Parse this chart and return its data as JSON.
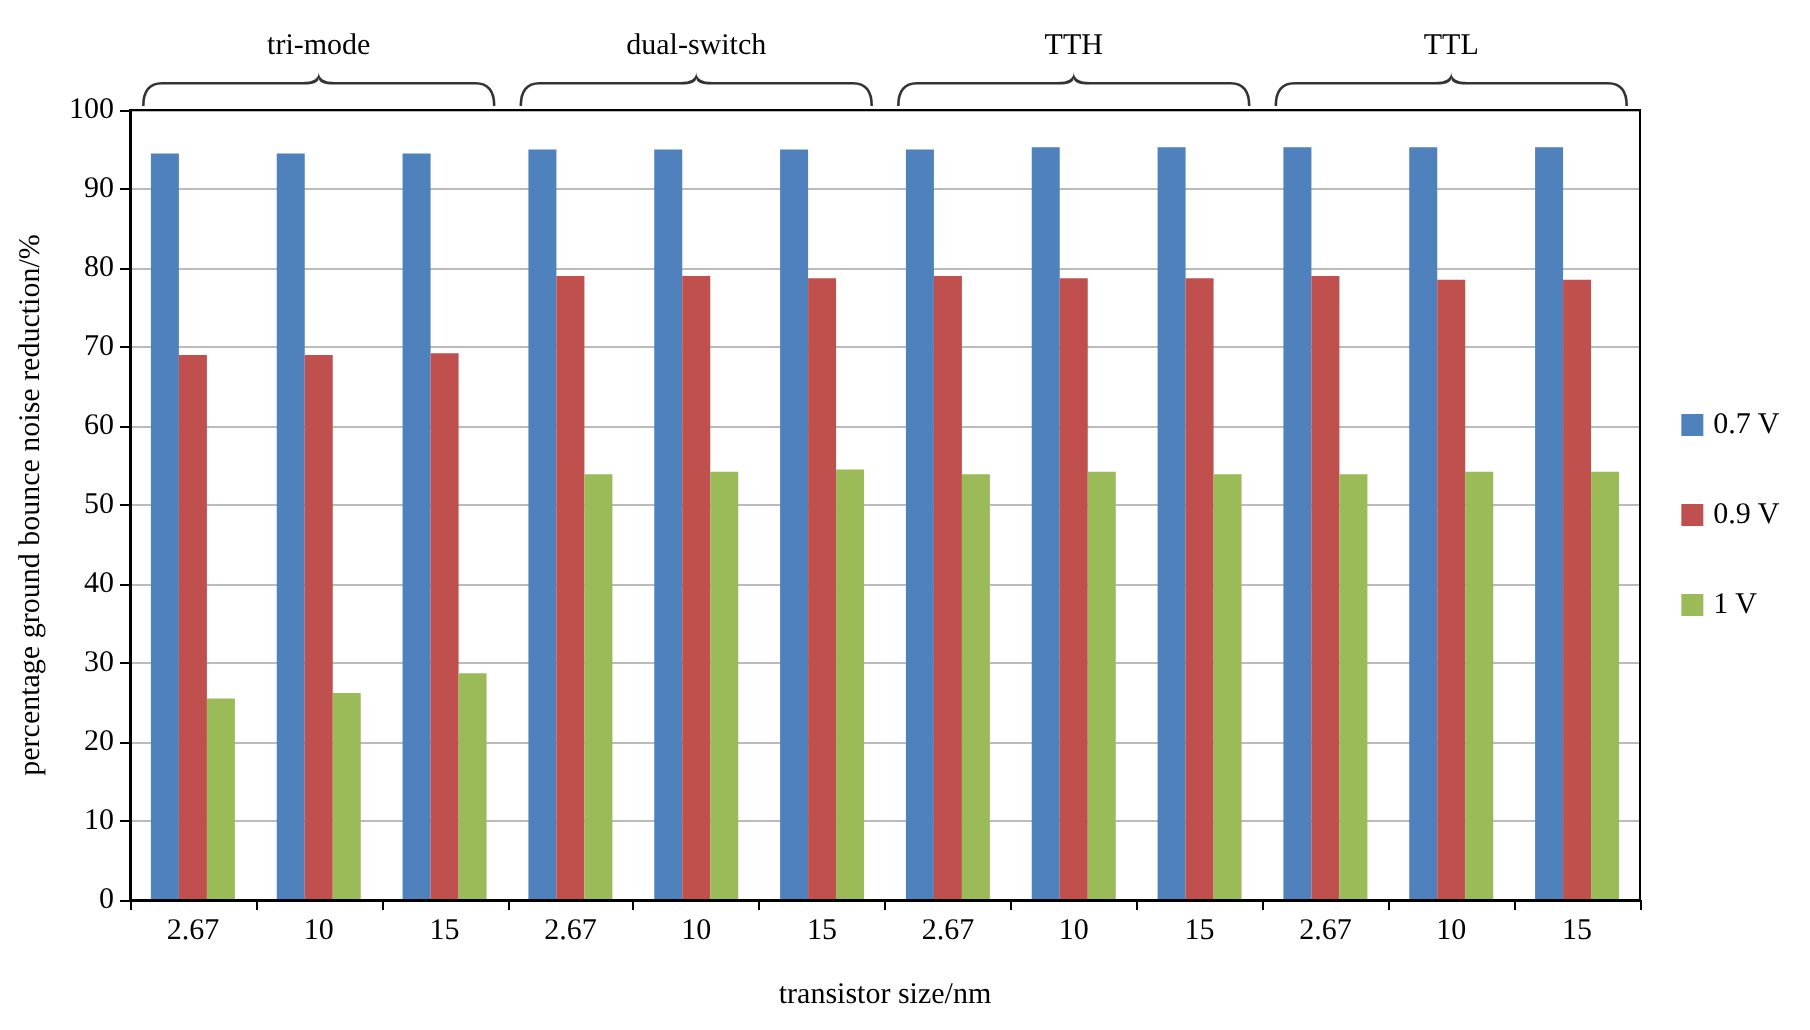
{
  "chart_data": {
    "type": "bar",
    "xlabel": "transistor size/nm",
    "ylabel": "percentage ground bounce noise reduction/%",
    "categories": [
      "2.67",
      "10",
      "15",
      "2.67",
      "10",
      "15",
      "2.67",
      "10",
      "15",
      "2.67",
      "10",
      "15"
    ],
    "series": [
      {
        "name": "0.7 V",
        "color": "#4f81bd",
        "values": [
          94.5,
          94.5,
          94.5,
          95,
          95,
          95,
          95,
          95.3,
          95.3,
          95.3,
          95.3,
          95.3
        ]
      },
      {
        "name": "0.9 V",
        "color": "#c0504d",
        "values": [
          69,
          69,
          69.2,
          79,
          79,
          78.7,
          79,
          78.7,
          78.7,
          79,
          78.5,
          78.5
        ]
      },
      {
        "name": "1 V",
        "color": "#9bbb59",
        "values": [
          25.5,
          26.2,
          28.7,
          53.9,
          54.2,
          54.5,
          53.9,
          54.2,
          53.9,
          53.9,
          54.2,
          54.2
        ]
      }
    ],
    "annotations": [
      "tri-mode",
      "dual-switch",
      "TTH",
      "TTL"
    ],
    "ylim": [
      0,
      100
    ],
    "yticks": [
      0,
      10,
      20,
      30,
      40,
      50,
      60,
      70,
      80,
      90,
      100
    ],
    "grid": "y",
    "legend": "right"
  }
}
